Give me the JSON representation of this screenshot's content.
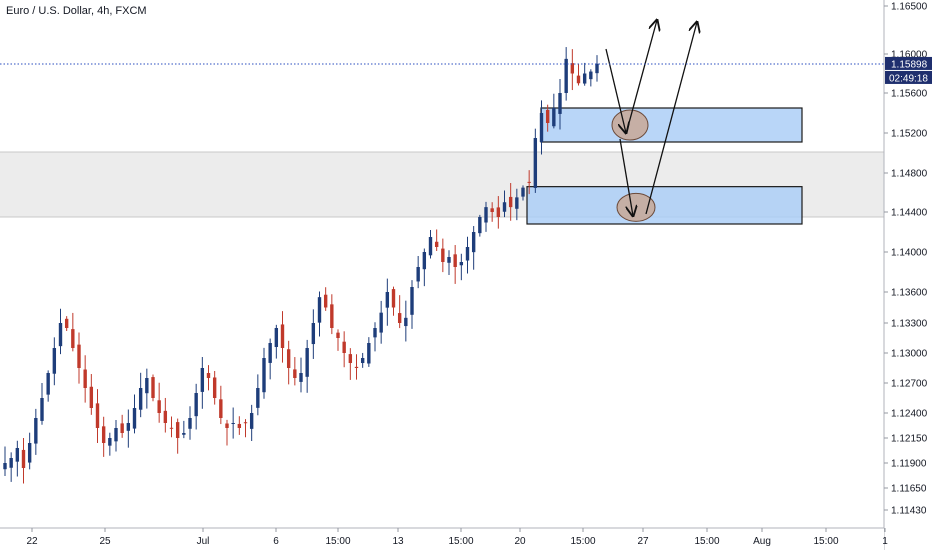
{
  "header": {
    "title": "Euro / U.S. Dollar, 4h, FXCM"
  },
  "price_badge": {
    "price": "1.15898",
    "countdown": "02:49:18"
  },
  "colors": {
    "up": "#1e3d7a",
    "down": "#c0392b",
    "box_fill": "#a9cdf7",
    "box_stroke": "#1a1a1a",
    "band_fill": "#ececec",
    "circle_fill": "#c8a896",
    "price_line": "#2a4dbf",
    "badge_bg": "#1f2f6e",
    "axis_text": "#131722"
  },
  "chart_data": {
    "type": "candlestick",
    "title": "Euro / U.S. Dollar, 4h, FXCM",
    "yticks": [
      "1.16500",
      "1.16000",
      "1.15600",
      "1.15200",
      "1.14800",
      "1.14400",
      "1.14000",
      "1.13600",
      "1.13300",
      "1.13000",
      "1.12700",
      "1.12400",
      "1.12150",
      "1.11900",
      "1.11650",
      "1.11430"
    ],
    "ytick_values": [
      1.165,
      1.16,
      1.156,
      1.152,
      1.148,
      1.144,
      1.14,
      1.136,
      1.133,
      1.13,
      1.127,
      1.124,
      1.1215,
      1.119,
      1.1165,
      1.1143
    ],
    "xticks": [
      "22",
      "25",
      "Jul",
      "6",
      "15:00",
      "13",
      "15:00",
      "20",
      "15:00",
      "27",
      "15:00",
      "Aug",
      "15:00",
      "1"
    ],
    "last_price": 1.15898,
    "horizontal_band": [
      1.1435,
      1.1501
    ],
    "zones": [
      {
        "price_range": [
          1.1511,
          1.1545
        ]
      },
      {
        "price_range": [
          1.1428,
          1.1466
        ]
      }
    ],
    "close_path": [
      1.119,
      1.1195,
      1.1205,
      1.1185,
      1.121,
      1.1235,
      1.1255,
      1.128,
      1.1305,
      1.133,
      1.1325,
      1.1305,
      1.1285,
      1.1265,
      1.1245,
      1.1225,
      1.121,
      1.1215,
      1.1225,
      1.122,
      1.123,
      1.1245,
      1.1265,
      1.1275,
      1.1255,
      1.124,
      1.123,
      1.1225,
      1.1215,
      1.122,
      1.1235,
      1.126,
      1.1285,
      1.1275,
      1.1255,
      1.1235,
      1.1225,
      1.123,
      1.1225,
      1.123,
      1.124,
      1.1265,
      1.1295,
      1.131,
      1.1325,
      1.1305,
      1.1285,
      1.1275,
      1.128,
      1.1305,
      1.133,
      1.1355,
      1.1345,
      1.1325,
      1.1315,
      1.13,
      1.129,
      1.1285,
      1.1295,
      1.131,
      1.1325,
      1.134,
      1.136,
      1.1345,
      1.133,
      1.1335,
      1.1365,
      1.1385,
      1.14,
      1.1415,
      1.1405,
      1.139,
      1.1395,
      1.1385,
      1.139,
      1.1405,
      1.142,
      1.1435,
      1.1445,
      1.144,
      1.1435,
      1.145,
      1.1445,
      1.1455,
      1.1465,
      1.147,
      1.1515,
      1.154,
      1.153,
      1.1545,
      1.156,
      1.1595,
      1.158,
      1.157,
      1.158,
      1.1582,
      1.159
    ]
  }
}
